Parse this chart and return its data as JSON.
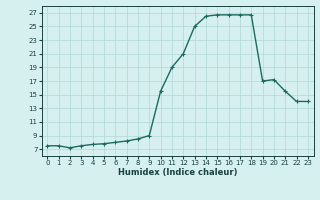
{
  "x": [
    0,
    1,
    2,
    3,
    4,
    5,
    6,
    7,
    8,
    9,
    10,
    11,
    12,
    13,
    14,
    15,
    16,
    17,
    18,
    19,
    20,
    21,
    22,
    23
  ],
  "y": [
    7.5,
    7.5,
    7.2,
    7.5,
    7.7,
    7.8,
    8.0,
    8.2,
    8.5,
    9.0,
    15.5,
    19.0,
    21.0,
    25.0,
    26.5,
    26.7,
    26.7,
    26.7,
    26.7,
    17.0,
    17.2,
    15.5,
    14.0,
    14.0
  ],
  "line_color": "#1a6b5e",
  "marker": "+",
  "marker_size": 3,
  "bg_color": "#d6f0f0",
  "grid_color": "#b0d8d8",
  "xlabel": "Humidex (Indice chaleur)",
  "xlim": [
    -0.5,
    23.5
  ],
  "ylim": [
    6,
    28
  ],
  "yticks": [
    7,
    9,
    11,
    13,
    15,
    17,
    19,
    21,
    23,
    25,
    27
  ],
  "xticks": [
    0,
    1,
    2,
    3,
    4,
    5,
    6,
    7,
    8,
    9,
    10,
    11,
    12,
    13,
    14,
    15,
    16,
    17,
    18,
    19,
    20,
    21,
    22,
    23
  ],
  "font_color": "#1a4040",
  "linewidth": 1.0,
  "tick_fontsize": 5.0,
  "xlabel_fontsize": 6.0
}
